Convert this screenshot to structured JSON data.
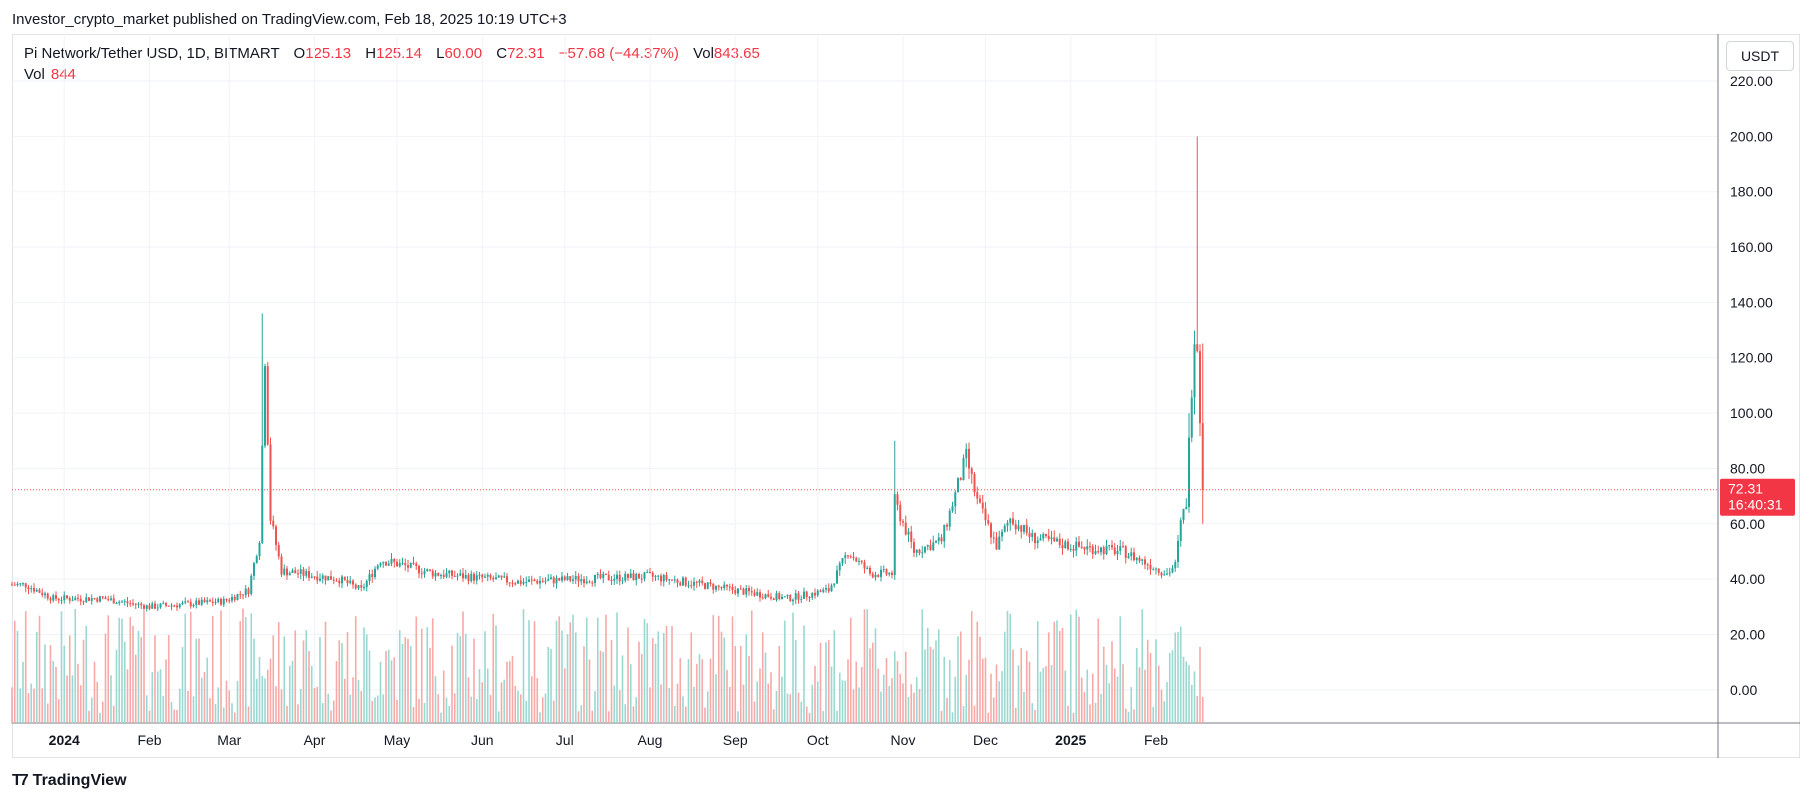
{
  "header": {
    "published": "Investor_crypto_market published on TradingView.com, Feb 18, 2025 10:19 UTC+3"
  },
  "legend": {
    "symbol": "Pi Network/Tether USD, 1D, BITMART",
    "o_label": "O",
    "o_value": "125.13",
    "h_label": "H",
    "h_value": "125.14",
    "l_label": "L",
    "l_value": "60.00",
    "c_label": "C",
    "c_value": "72.31",
    "change": "−57.68 (−44.37%)",
    "vol_label": "Vol",
    "vol_value": "843.65",
    "vol2_label": "Vol",
    "vol2_value": "844"
  },
  "unit_button": "USDT",
  "price_tag": {
    "price": "72.31",
    "countdown": "16:40:31"
  },
  "brand": {
    "name": "TradingView"
  },
  "colors": {
    "up": "#26a69a",
    "down": "#ef5350",
    "up_vol": "#9ad8d1",
    "down_vol": "#f7a9a7",
    "grid": "#f0f3fa",
    "axis_text": "#131722"
  },
  "chart_data": {
    "type": "candlestick",
    "title": "Pi Network/Tether USD, 1D, BITMART",
    "ylim": [
      -12,
      237
    ],
    "y_ticks": [
      "220.00",
      "200.00",
      "180.00",
      "160.00",
      "140.00",
      "120.00",
      "100.00",
      "80.00",
      "60.00",
      "40.00",
      "20.00",
      "0.00"
    ],
    "x_ticks": [
      "2024",
      "Feb",
      "Mar",
      "Apr",
      "May",
      "Jun",
      "Jul",
      "Aug",
      "Sep",
      "Oct",
      "Nov",
      "Dec",
      "2025",
      "Feb"
    ],
    "last_price": 72.31,
    "grid": true,
    "price_anchors": [
      {
        "date": "2023-12-18",
        "close": 38
      },
      {
        "date": "2023-12-28",
        "close": 33
      },
      {
        "date": "2024-01-15",
        "close": 33
      },
      {
        "date": "2024-02-01",
        "close": 30
      },
      {
        "date": "2024-02-28",
        "close": 32
      },
      {
        "date": "2024-03-08",
        "close": 36
      },
      {
        "date": "2024-03-12",
        "close": 55
      },
      {
        "date": "2024-03-14",
        "close": 121
      },
      {
        "date": "2024-03-16",
        "close": 62
      },
      {
        "date": "2024-03-20",
        "close": 43
      },
      {
        "date": "2024-04-10",
        "close": 40
      },
      {
        "date": "2024-04-18",
        "close": 36
      },
      {
        "date": "2024-04-25",
        "close": 47
      },
      {
        "date": "2024-05-15",
        "close": 42
      },
      {
        "date": "2024-06-15",
        "close": 39
      },
      {
        "date": "2024-07-05",
        "close": 40
      },
      {
        "date": "2024-08-01",
        "close": 41
      },
      {
        "date": "2024-09-01",
        "close": 36
      },
      {
        "date": "2024-09-20",
        "close": 33
      },
      {
        "date": "2024-10-05",
        "close": 36
      },
      {
        "date": "2024-10-12",
        "close": 50
      },
      {
        "date": "2024-10-20",
        "close": 42
      },
      {
        "date": "2024-10-28",
        "close": 42
      },
      {
        "date": "2024-10-29",
        "close": 68
      },
      {
        "date": "2024-11-05",
        "close": 50
      },
      {
        "date": "2024-11-15",
        "close": 54
      },
      {
        "date": "2024-11-24",
        "close": 84
      },
      {
        "date": "2024-11-28",
        "close": 68
      },
      {
        "date": "2024-12-05",
        "close": 52
      },
      {
        "date": "2024-12-10",
        "close": 62
      },
      {
        "date": "2024-12-18",
        "close": 55
      },
      {
        "date": "2025-01-01",
        "close": 52
      },
      {
        "date": "2025-01-20",
        "close": 50
      },
      {
        "date": "2025-02-05",
        "close": 42
      },
      {
        "date": "2025-02-08",
        "close": 45
      },
      {
        "date": "2025-02-10",
        "close": 60
      },
      {
        "date": "2025-02-12",
        "close": 68
      },
      {
        "date": "2025-02-14",
        "close": 110
      },
      {
        "date": "2025-02-15",
        "close": 130
      },
      {
        "date": "2025-02-16",
        "close": 125
      },
      {
        "date": "2025-02-18",
        "close": 72.31
      }
    ],
    "spikes": [
      {
        "date": "2024-03-13",
        "high": 136
      },
      {
        "date": "2024-10-29",
        "high": 90
      },
      {
        "date": "2024-11-25",
        "high": 87
      },
      {
        "date": "2025-02-13",
        "high": 100
      },
      {
        "date": "2025-02-16",
        "high": 200
      }
    ],
    "volume": {
      "last": 844
    }
  }
}
